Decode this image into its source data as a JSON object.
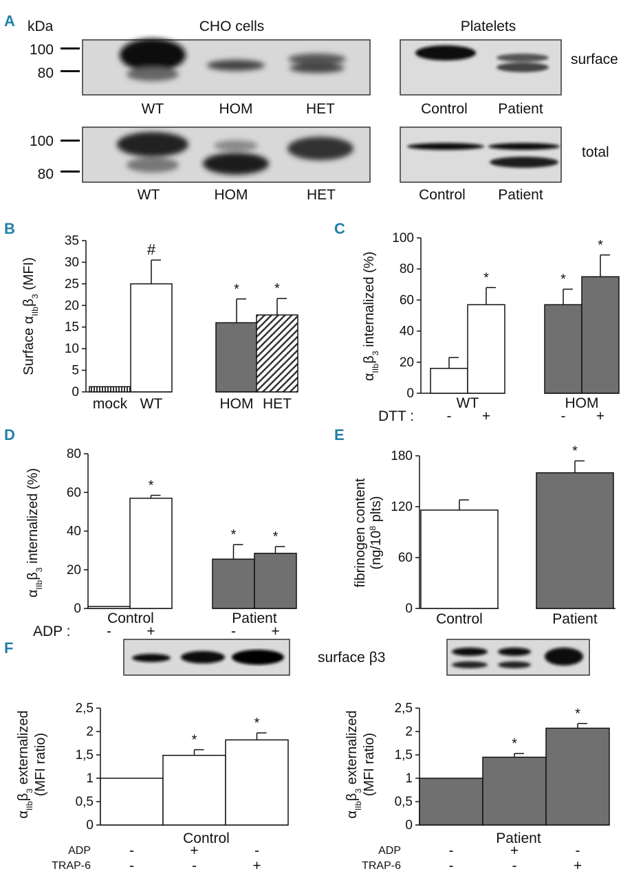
{
  "colors": {
    "panel_label": "#1f7fa6",
    "gray_bar": "#707070",
    "white_bar": "#ffffff",
    "blot_bg": "#d9d9d9"
  },
  "panel_a": {
    "label": "A",
    "kda": "kDa",
    "cho_title": "CHO cells",
    "plt_title": "Platelets",
    "marker_100": "100",
    "marker_80": "80",
    "surface_label": "surface",
    "total_label": "total",
    "cho_lanes": [
      "WT",
      "HOM",
      "HET"
    ],
    "plt_lanes": [
      "Control",
      "Patient"
    ]
  },
  "chart_data": [
    {
      "panel": "B",
      "type": "bar",
      "ylabel": "Surface αIIbβ3 (MFI)",
      "ylim": [
        0,
        35
      ],
      "yticks": [
        "0",
        "5",
        "10",
        "15",
        "20",
        "25",
        "30",
        "35"
      ],
      "categories": [
        "mock",
        "WT",
        "HOM",
        "HET"
      ],
      "values": [
        1.2,
        25,
        16,
        17.8
      ],
      "errors": [
        0,
        5.5,
        5.5,
        3.8
      ],
      "annotations": [
        "",
        "#",
        "*",
        "*"
      ]
    },
    {
      "panel": "C",
      "type": "bar",
      "ylabel": "αIIbβ3 internalized (%)",
      "ylim": [
        0,
        100
      ],
      "yticks": [
        "0",
        "20",
        "40",
        "60",
        "80",
        "100"
      ],
      "groups": [
        "WT",
        "HOM"
      ],
      "treatment_label": "DTT :",
      "treatments": [
        "-",
        "+",
        "-",
        "+"
      ],
      "values": [
        16,
        57,
        57,
        75
      ],
      "errors": [
        7,
        11,
        10,
        14
      ],
      "annotations": [
        "",
        "*",
        "*",
        "*"
      ]
    },
    {
      "panel": "D",
      "type": "bar",
      "ylabel": "αIIbβ3 internalized (%)",
      "ylim": [
        0,
        80
      ],
      "yticks": [
        "0",
        "20",
        "40",
        "60",
        "80"
      ],
      "groups": [
        "Control",
        "Patient"
      ],
      "treatment_label": "ADP :",
      "treatments": [
        "-",
        "+",
        "-",
        "+"
      ],
      "values": [
        1,
        57,
        25.5,
        28.5
      ],
      "errors": [
        0,
        1.5,
        7.5,
        3.5
      ],
      "annotations": [
        "",
        "*",
        "*",
        "*"
      ]
    },
    {
      "panel": "E",
      "type": "bar",
      "ylabel": "fibrinogen content (ng/10⁸ plts)",
      "ylim": [
        0,
        180
      ],
      "yticks": [
        "0",
        "60",
        "120",
        "180"
      ],
      "categories": [
        "Control",
        "Patient"
      ],
      "values": [
        116,
        160
      ],
      "errors": [
        12,
        14
      ],
      "annotations": [
        "",
        "*"
      ]
    },
    {
      "panel": "F",
      "subpanel": "Control",
      "type": "bar",
      "ylabel": "αIIbβ3 externalized (MFI ratio)",
      "ylim": [
        0,
        2.5
      ],
      "yticks": [
        "0",
        "0,5",
        "1",
        "1,5",
        "2",
        "2,5"
      ],
      "group_label": "Control",
      "row_labels": [
        "ADP",
        "TRAP-6"
      ],
      "adp": [
        "-",
        "+",
        "-"
      ],
      "trap": [
        "-",
        "-",
        "+"
      ],
      "values": [
        1.0,
        1.49,
        1.82
      ],
      "errors": [
        0,
        0.12,
        0.15
      ],
      "annotations": [
        "",
        "*",
        "*"
      ]
    },
    {
      "panel": "F",
      "subpanel": "Patient",
      "type": "bar",
      "ylabel": "αIIbβ3 externalized (MFI ratio)",
      "ylim": [
        0,
        2.5
      ],
      "yticks": [
        "0",
        "0,5",
        "1",
        "1,5",
        "2",
        "2,5"
      ],
      "group_label": "Patient",
      "row_labels": [
        "ADP",
        "TRAP-6"
      ],
      "adp": [
        "-",
        "+",
        "-"
      ],
      "trap": [
        "-",
        "-",
        "+"
      ],
      "values": [
        1.0,
        1.45,
        2.07
      ],
      "errors": [
        0,
        0.08,
        0.1
      ],
      "annotations": [
        "",
        "*",
        "*"
      ]
    }
  ],
  "panel_labels": {
    "b": "B",
    "c": "C",
    "d": "D",
    "e": "E",
    "f": "F"
  },
  "panel_f": {
    "surface_label": "surface β3"
  }
}
